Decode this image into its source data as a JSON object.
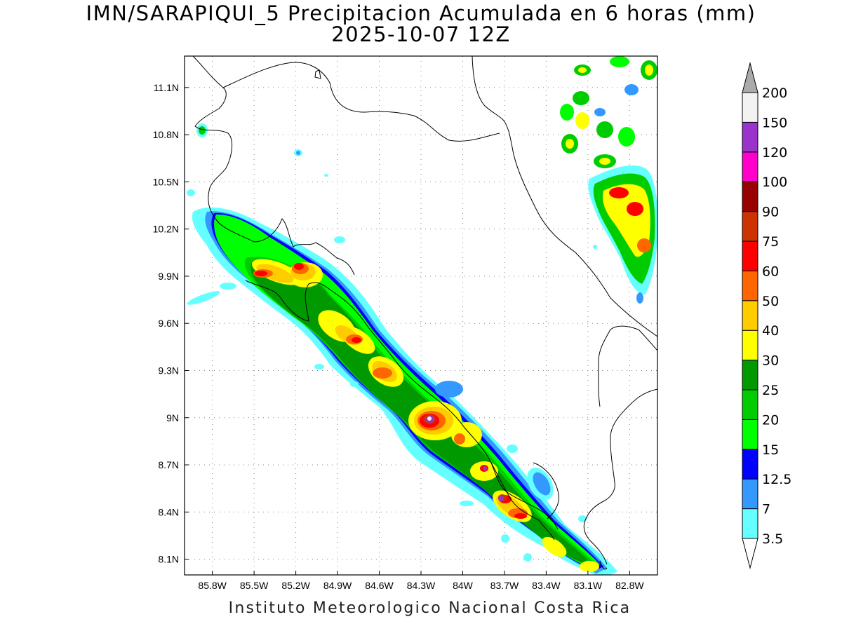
{
  "title": "IMN/SARAPIQUI_5 Precipitacion Acumulada en 6 horas (mm)",
  "subtitle": "2025-10-07 12Z",
  "credit": "Instituto Meteorologico Nacional Costa Rica",
  "map": {
    "lon_range": [
      -86.0,
      -82.6
    ],
    "lat_range": [
      8.0,
      11.3
    ],
    "lon_ticks": [
      {
        "value": -85.8,
        "label": "85.8W"
      },
      {
        "value": -85.5,
        "label": "85.5W"
      },
      {
        "value": -85.2,
        "label": "85.2W"
      },
      {
        "value": -84.9,
        "label": "84.9W"
      },
      {
        "value": -84.6,
        "label": "84.6W"
      },
      {
        "value": -84.3,
        "label": "84.3W"
      },
      {
        "value": -84.0,
        "label": "84W"
      },
      {
        "value": -83.7,
        "label": "83.7W"
      },
      {
        "value": -83.4,
        "label": "83.4W"
      },
      {
        "value": -83.1,
        "label": "83.1W"
      },
      {
        "value": -82.8,
        "label": "82.8W"
      }
    ],
    "lat_ticks": [
      {
        "value": 8.1,
        "label": "8.1N"
      },
      {
        "value": 8.4,
        "label": "8.4N"
      },
      {
        "value": 8.7,
        "label": "8.7N"
      },
      {
        "value": 9.0,
        "label": "9N"
      },
      {
        "value": 9.3,
        "label": "9.3N"
      },
      {
        "value": 9.6,
        "label": "9.6N"
      },
      {
        "value": 9.9,
        "label": "9.9N"
      },
      {
        "value": 10.2,
        "label": "10.2N"
      },
      {
        "value": 10.5,
        "label": "10.5N"
      },
      {
        "value": 10.8,
        "label": "10.8N"
      },
      {
        "value": 11.1,
        "label": "11.1N"
      }
    ],
    "grid": "dotted"
  },
  "colorbar": {
    "levels": [
      {
        "label": "3.5",
        "color": "#66ffff"
      },
      {
        "label": "7",
        "color": "#3399ff"
      },
      {
        "label": "12.5",
        "color": "#0000ff"
      },
      {
        "label": "15",
        "color": "#00ff00"
      },
      {
        "label": "20",
        "color": "#00cc00"
      },
      {
        "label": "25",
        "color": "#009900"
      },
      {
        "label": "30",
        "color": "#ffff00"
      },
      {
        "label": "40",
        "color": "#ffcc00"
      },
      {
        "label": "50",
        "color": "#ff6600"
      },
      {
        "label": "60",
        "color": "#ff0000"
      },
      {
        "label": "75",
        "color": "#cc3300"
      },
      {
        "label": "90",
        "color": "#990000"
      },
      {
        "label": "100",
        "color": "#ff00cc"
      },
      {
        "label": "120",
        "color": "#9933cc"
      },
      {
        "label": "150",
        "color": "#f2f2f2"
      },
      {
        "label": "200",
        "color": null
      }
    ],
    "top_arrow_color": "#aaaaaa",
    "bottom_arrow_color": "#ffffff"
  }
}
